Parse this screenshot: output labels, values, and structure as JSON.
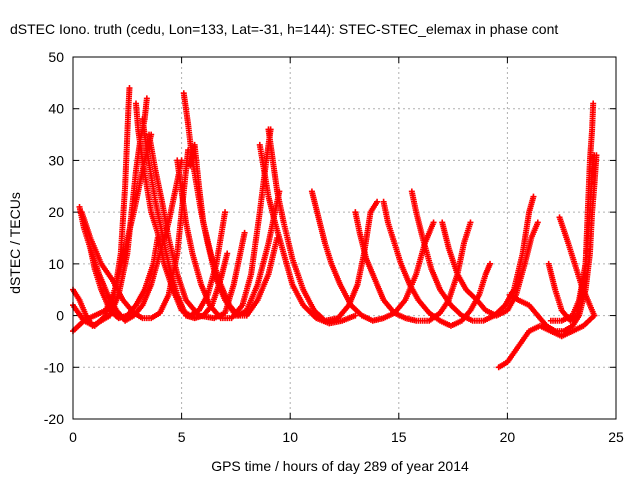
{
  "chart_data": {
    "type": "scatter",
    "title": "dSTEC Iono. truth (cedu, Lon=133, Lat=-31, h=144): STEC-STEC_elemax in phase cont",
    "xlabel": "GPS time / hours of day 289 of year 2014",
    "ylabel": "dSTEC  / TECUs",
    "xlim": [
      0,
      25
    ],
    "ylim": [
      -20,
      50
    ],
    "xticks": [
      0,
      5,
      10,
      15,
      20,
      25
    ],
    "yticks": [
      -20,
      -10,
      0,
      10,
      20,
      30,
      40,
      50
    ],
    "grid": true,
    "marker": "+",
    "colors": {
      "series": "#ff0000",
      "grid": "#b0b0b0",
      "axis": "#000000"
    },
    "series": [
      {
        "points": [
          [
            0.0,
            5
          ],
          [
            0.3,
            3
          ],
          [
            0.6,
            0
          ],
          [
            0.9,
            -2
          ],
          [
            1.3,
            -1
          ],
          [
            1.7,
            0
          ],
          [
            2.1,
            4
          ],
          [
            2.5,
            12
          ],
          [
            2.7,
            20
          ],
          [
            2.9,
            28
          ],
          [
            3.1,
            34
          ],
          [
            3.3,
            38
          ],
          [
            3.4,
            42
          ]
        ]
      },
      {
        "points": [
          [
            0.0,
            -3
          ],
          [
            0.5,
            -1
          ],
          [
            1.0,
            0
          ],
          [
            1.5,
            1
          ],
          [
            1.9,
            4
          ],
          [
            2.2,
            12
          ],
          [
            2.4,
            25
          ],
          [
            2.5,
            35
          ],
          [
            2.55,
            40
          ],
          [
            2.6,
            44
          ]
        ]
      },
      {
        "points": [
          [
            0.0,
            2
          ],
          [
            0.5,
            -1
          ],
          [
            1.0,
            -2
          ],
          [
            1.5,
            0
          ],
          [
            2.0,
            6
          ],
          [
            2.4,
            13
          ],
          [
            2.8,
            20
          ],
          [
            3.1,
            26
          ],
          [
            3.3,
            30
          ],
          [
            3.6,
            35
          ]
        ]
      },
      {
        "points": [
          [
            0.3,
            21
          ],
          [
            0.5,
            17
          ],
          [
            0.8,
            13
          ],
          [
            1.2,
            8
          ],
          [
            1.6,
            4
          ],
          [
            2.0,
            1
          ],
          [
            2.4,
            -1
          ],
          [
            2.8,
            0
          ],
          [
            3.2,
            2
          ],
          [
            3.6,
            6
          ],
          [
            4.0,
            12
          ],
          [
            4.4,
            18
          ],
          [
            4.7,
            24
          ],
          [
            5.0,
            30
          ]
        ]
      },
      {
        "points": [
          [
            0.4,
            20
          ],
          [
            0.8,
            15
          ],
          [
            1.3,
            10
          ],
          [
            1.8,
            7
          ],
          [
            2.3,
            3
          ],
          [
            2.8,
            0.5
          ],
          [
            3.2,
            -0.5
          ],
          [
            3.6,
            -0.5
          ],
          [
            4.0,
            0.5
          ],
          [
            4.4,
            4
          ],
          [
            4.8,
            12
          ],
          [
            5.0,
            20
          ],
          [
            5.2,
            28
          ],
          [
            5.3,
            32
          ]
        ]
      },
      {
        "points": [
          [
            0.8,
            13
          ],
          [
            1.0,
            9
          ],
          [
            1.3,
            5
          ],
          [
            1.7,
            1
          ],
          [
            2.1,
            -0.5
          ],
          [
            2.5,
            0
          ],
          [
            2.9,
            2
          ],
          [
            3.3,
            5
          ],
          [
            3.7,
            10
          ],
          [
            3.9,
            15
          ]
        ]
      },
      {
        "points": [
          [
            2.9,
            41
          ],
          [
            3.0,
            36
          ],
          [
            3.2,
            30
          ],
          [
            3.4,
            25
          ],
          [
            3.6,
            20
          ],
          [
            3.9,
            16
          ],
          [
            4.2,
            10
          ],
          [
            4.6,
            5
          ],
          [
            5.0,
            1
          ],
          [
            5.4,
            0
          ],
          [
            5.8,
            1
          ],
          [
            6.2,
            4
          ],
          [
            6.6,
            10
          ],
          [
            7.0,
            20
          ]
        ]
      },
      {
        "points": [
          [
            3.2,
            38
          ],
          [
            3.4,
            32
          ],
          [
            3.6,
            27
          ],
          [
            3.8,
            22
          ],
          [
            4.1,
            16
          ],
          [
            4.4,
            10
          ],
          [
            4.8,
            4
          ],
          [
            5.2,
            0
          ],
          [
            5.6,
            -0.5
          ],
          [
            6.0,
            0
          ],
          [
            6.4,
            2
          ],
          [
            6.8,
            7
          ],
          [
            7.1,
            12
          ]
        ]
      },
      {
        "points": [
          [
            3.5,
            35
          ],
          [
            3.8,
            28
          ],
          [
            4.1,
            22
          ],
          [
            4.4,
            15
          ],
          [
            4.8,
            8
          ],
          [
            5.2,
            3
          ],
          [
            5.8,
            0
          ],
          [
            6.5,
            -0.5
          ],
          [
            7.0,
            0.5
          ],
          [
            7.4,
            6
          ],
          [
            7.7,
            12
          ],
          [
            7.9,
            16
          ]
        ]
      },
      {
        "points": [
          [
            4.8,
            30
          ],
          [
            5.0,
            24
          ],
          [
            5.2,
            18
          ],
          [
            5.5,
            12
          ],
          [
            5.9,
            6
          ],
          [
            6.3,
            2
          ],
          [
            6.8,
            -0.5
          ],
          [
            7.3,
            -0.5
          ],
          [
            7.8,
            2
          ],
          [
            8.2,
            8
          ],
          [
            8.6,
            20
          ],
          [
            8.9,
            30
          ],
          [
            9.1,
            36
          ]
        ]
      },
      {
        "points": [
          [
            5.1,
            43
          ],
          [
            5.3,
            37
          ],
          [
            5.5,
            30
          ],
          [
            5.7,
            25
          ],
          [
            5.9,
            20
          ],
          [
            6.2,
            14
          ],
          [
            6.6,
            7
          ],
          [
            7.0,
            3
          ],
          [
            7.5,
            0
          ],
          [
            8.0,
            0
          ],
          [
            8.5,
            3
          ],
          [
            9.0,
            8
          ],
          [
            9.4,
            15
          ]
        ]
      },
      {
        "points": [
          [
            5.4,
            29
          ],
          [
            5.6,
            33
          ],
          [
            5.8,
            25
          ],
          [
            6.0,
            18
          ],
          [
            6.4,
            11
          ],
          [
            6.8,
            6
          ],
          [
            7.2,
            2
          ],
          [
            7.6,
            0
          ],
          [
            8.0,
            1
          ],
          [
            8.5,
            6
          ],
          [
            9.0,
            14
          ],
          [
            9.3,
            20
          ],
          [
            9.5,
            24
          ]
        ]
      },
      {
        "points": [
          [
            8.6,
            33
          ],
          [
            8.8,
            28
          ],
          [
            9.0,
            23
          ],
          [
            9.3,
            18
          ],
          [
            9.7,
            12
          ],
          [
            10.1,
            6
          ],
          [
            10.6,
            2
          ],
          [
            11.2,
            -0.5
          ],
          [
            11.8,
            -1.5
          ],
          [
            12.4,
            -1
          ],
          [
            13.0,
            0
          ]
        ]
      },
      {
        "points": [
          [
            9.0,
            36
          ],
          [
            9.2,
            30
          ],
          [
            9.4,
            24
          ],
          [
            9.7,
            18
          ],
          [
            10.1,
            11
          ],
          [
            10.6,
            5
          ],
          [
            11.1,
            1
          ],
          [
            11.6,
            -1
          ],
          [
            12.2,
            -0.5
          ],
          [
            12.7,
            2
          ],
          [
            13.1,
            6
          ],
          [
            13.4,
            12
          ],
          [
            13.7,
            20
          ],
          [
            14.0,
            22
          ]
        ]
      },
      {
        "points": [
          [
            11.0,
            24
          ],
          [
            11.3,
            19
          ],
          [
            11.6,
            14
          ],
          [
            11.9,
            10
          ],
          [
            12.3,
            6
          ],
          [
            12.8,
            2
          ],
          [
            13.3,
            0
          ],
          [
            13.8,
            -1
          ],
          [
            14.3,
            -0.5
          ],
          [
            14.8,
            0.5
          ],
          [
            15.3,
            3
          ],
          [
            15.8,
            8
          ],
          [
            16.2,
            14
          ],
          [
            16.6,
            18
          ]
        ]
      },
      {
        "points": [
          [
            13.0,
            20
          ],
          [
            13.2,
            16
          ],
          [
            13.5,
            11
          ],
          [
            13.9,
            7
          ],
          [
            14.3,
            3
          ],
          [
            14.8,
            0.5
          ],
          [
            15.3,
            -0.5
          ],
          [
            15.8,
            -1
          ],
          [
            16.4,
            -1
          ],
          [
            16.9,
            0.5
          ],
          [
            17.3,
            3
          ],
          [
            17.7,
            8
          ],
          [
            18.0,
            14
          ],
          [
            18.3,
            18
          ]
        ]
      },
      {
        "points": [
          [
            14.3,
            22
          ],
          [
            14.5,
            18
          ],
          [
            14.8,
            14
          ],
          [
            15.1,
            10
          ],
          [
            15.5,
            6
          ],
          [
            15.9,
            3
          ],
          [
            16.4,
            0.5
          ],
          [
            16.9,
            -1
          ],
          [
            17.4,
            -2
          ],
          [
            17.9,
            -1
          ],
          [
            18.3,
            1
          ],
          [
            18.7,
            4
          ],
          [
            19.0,
            8
          ],
          [
            19.2,
            10
          ]
        ]
      },
      {
        "points": [
          [
            15.6,
            24
          ],
          [
            15.8,
            20
          ],
          [
            16.1,
            15
          ],
          [
            16.5,
            9
          ],
          [
            16.9,
            5
          ],
          [
            17.4,
            2
          ],
          [
            17.9,
            0
          ],
          [
            18.4,
            -1
          ],
          [
            18.9,
            -1
          ],
          [
            19.4,
            0
          ],
          [
            19.9,
            2
          ],
          [
            20.3,
            5
          ],
          [
            20.7,
            12
          ],
          [
            21.0,
            20
          ],
          [
            21.2,
            23
          ]
        ]
      },
      {
        "points": [
          [
            17.0,
            18
          ],
          [
            17.3,
            13
          ],
          [
            17.7,
            8
          ],
          [
            18.1,
            5
          ],
          [
            18.6,
            3
          ],
          [
            19.0,
            1
          ],
          [
            19.5,
            0
          ],
          [
            20.0,
            1
          ],
          [
            20.4,
            4
          ],
          [
            20.8,
            10
          ],
          [
            21.1,
            15
          ],
          [
            21.4,
            18
          ]
        ]
      },
      {
        "points": [
          [
            19.6,
            -10
          ],
          [
            20.0,
            -9
          ],
          [
            20.5,
            -6
          ],
          [
            21.0,
            -3
          ],
          [
            21.5,
            -2
          ],
          [
            22.0,
            -3
          ],
          [
            22.5,
            -4
          ],
          [
            23.0,
            -3
          ],
          [
            23.5,
            -2
          ],
          [
            24.0,
            0
          ]
        ]
      },
      {
        "points": [
          [
            20.1,
            4
          ],
          [
            20.5,
            3
          ],
          [
            21.0,
            2
          ],
          [
            21.4,
            0
          ],
          [
            21.8,
            -2
          ],
          [
            22.2,
            -3
          ],
          [
            22.6,
            -3
          ],
          [
            23.0,
            -2
          ],
          [
            23.3,
            0
          ],
          [
            23.6,
            5
          ],
          [
            23.8,
            12
          ],
          [
            23.9,
            20
          ],
          [
            24.0,
            25
          ],
          [
            24.1,
            31
          ]
        ]
      },
      {
        "points": [
          [
            21.9,
            10
          ],
          [
            22.2,
            5
          ],
          [
            22.5,
            1
          ],
          [
            22.9,
            -1
          ],
          [
            23.2,
            0
          ],
          [
            23.4,
            4
          ],
          [
            23.6,
            10
          ],
          [
            23.7,
            20
          ],
          [
            23.8,
            30
          ],
          [
            23.9,
            36
          ],
          [
            23.95,
            41
          ]
        ]
      },
      {
        "points": [
          [
            22.4,
            19
          ],
          [
            22.8,
            14
          ],
          [
            23.1,
            10
          ],
          [
            23.4,
            6
          ],
          [
            23.7,
            3
          ],
          [
            24.0,
            0
          ]
        ]
      },
      {
        "points": [
          [
            22.0,
            -1
          ],
          [
            22.5,
            -1
          ],
          [
            23.0,
            0
          ],
          [
            23.3,
            3
          ],
          [
            23.6,
            10
          ],
          [
            23.8,
            20
          ],
          [
            23.9,
            28
          ],
          [
            24.0,
            31
          ]
        ]
      }
    ]
  }
}
